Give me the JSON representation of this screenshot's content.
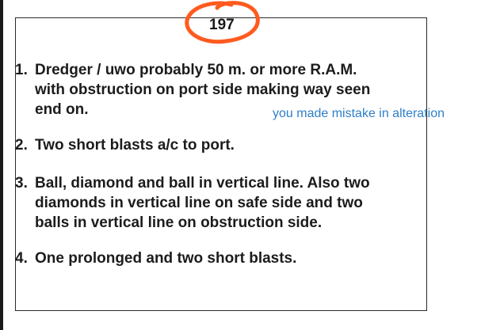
{
  "page_number": "197",
  "annotation_color": "#ff5a1f",
  "note_color": "#2d7fc9",
  "items": [
    {
      "number": "1.",
      "lines": [
        "Dredger / uwo probably 50 m. or more R.A.M.",
        "with obstruction on port side making way seen",
        "end on."
      ]
    },
    {
      "number": "2.",
      "lines": [
        "Two short blasts a/c to port."
      ]
    },
    {
      "number": "3.",
      "lines": [
        "Ball, diamond and ball in vertical line. Also two",
        "diamonds in vertical line on safe side and two",
        "balls in vertical line on obstruction side."
      ]
    },
    {
      "number": "4.",
      "lines": [
        "One prolonged and two short blasts."
      ]
    }
  ],
  "note": "you made mistake in alteration"
}
